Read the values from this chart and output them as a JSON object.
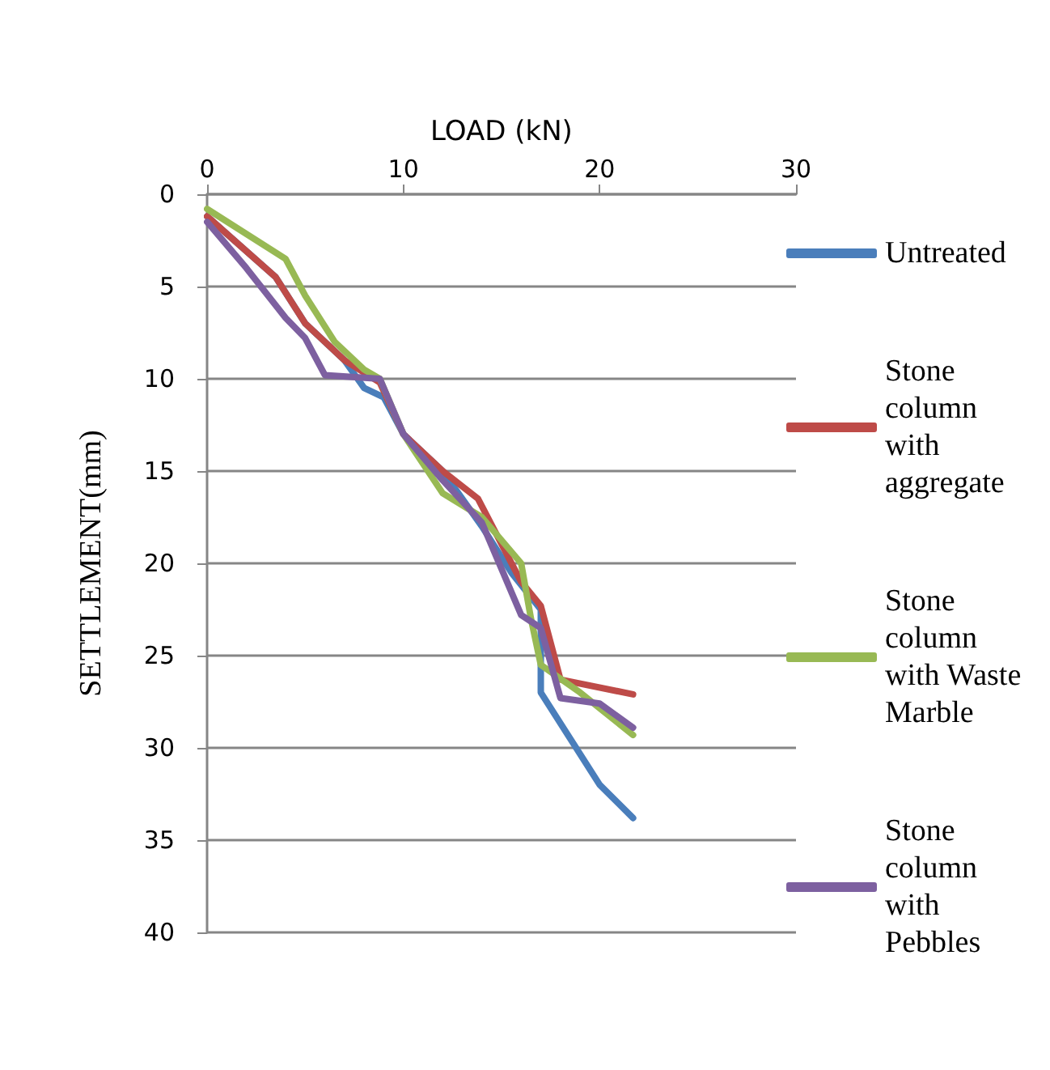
{
  "chart_data": {
    "type": "line",
    "xlabel": "LOAD (kN)",
    "ylabel": "SETTLEMENT(mm)",
    "xlim": [
      0,
      30
    ],
    "xticks": [
      0,
      10,
      20,
      30
    ],
    "ylim": [
      40,
      0
    ],
    "yticks": [
      0,
      5,
      10,
      15,
      20,
      25,
      30,
      35,
      40
    ],
    "grid": "y",
    "legend": "right",
    "marker": "none",
    "series": [
      {
        "name": "Untreated",
        "color": "#4a7ebb",
        "x": [
          0,
          3.5,
          5,
          7,
          8,
          9,
          10,
          12,
          14,
          15.5,
          17,
          17,
          18.5,
          20,
          21.7
        ],
        "values": [
          1.2,
          4.5,
          7,
          9,
          10.5,
          11,
          13,
          15,
          18,
          20.5,
          22.5,
          27,
          29.5,
          32,
          33.8
        ]
      },
      {
        "name": "Stone column with aggregate",
        "color": "#be4b48",
        "x": [
          0,
          3.5,
          5,
          7,
          8.8,
          10,
          12,
          13.8,
          16,
          17,
          18,
          21.7
        ],
        "values": [
          1.2,
          4.5,
          7,
          9,
          10.2,
          13,
          15,
          16.5,
          21,
          22.3,
          26.3,
          27.1
        ]
      },
      {
        "name": "Stone column with Waste Marble",
        "color": "#98b954",
        "x": [
          0,
          4,
          5,
          6.5,
          8,
          8.8,
          10,
          12,
          14,
          16,
          16.5,
          17,
          19,
          21.7
        ],
        "values": [
          0.8,
          3.5,
          5.5,
          8,
          9.5,
          10,
          13,
          16.2,
          17.5,
          20,
          23,
          25.5,
          27,
          29.3
        ]
      },
      {
        "name": "Stone column with Pebbles",
        "color": "#7d60a0",
        "x": [
          0,
          2,
          4,
          5,
          6,
          8.8,
          10,
          12,
          14,
          16,
          17,
          18,
          20,
          21.7
        ],
        "values": [
          1.5,
          4,
          6.7,
          7.8,
          9.8,
          10,
          13,
          15.5,
          17.8,
          22.8,
          23.5,
          27.3,
          27.6,
          28.9
        ]
      }
    ]
  }
}
